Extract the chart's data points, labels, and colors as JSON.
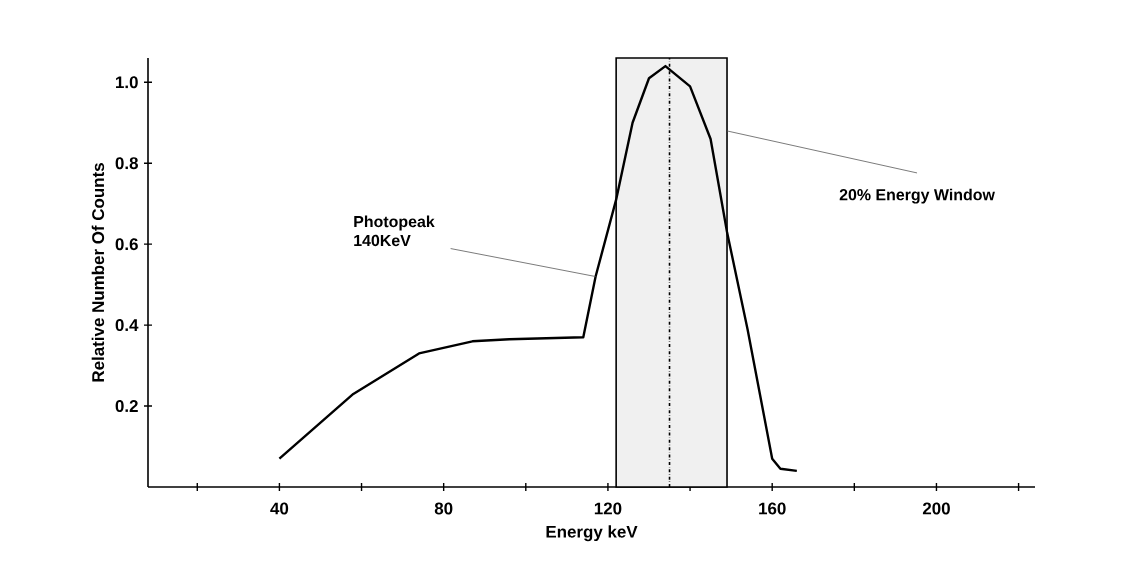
{
  "chart_data": {
    "type": "line",
    "xlabel": "Energy keV",
    "ylabel": "Relative Number Of Counts",
    "x": [
      40,
      58,
      74,
      87,
      96,
      114,
      117,
      122,
      126,
      130,
      134,
      140,
      145,
      149,
      154,
      160,
      162,
      166
    ],
    "series": [
      {
        "color": "#000000",
        "values": [
          0.07,
          0.23,
          0.33,
          0.36,
          0.365,
          0.37,
          0.52,
          0.71,
          0.9,
          1.01,
          1.04,
          0.99,
          0.86,
          0.63,
          0.39,
          0.07,
          0.045,
          0.04
        ]
      }
    ],
    "xlim": [
      8,
      224
    ],
    "ylim": [
      0,
      1.06
    ],
    "xticks": [
      {
        "value": 20,
        "label": null
      },
      40,
      {
        "value": 60,
        "label": null
      },
      80,
      {
        "value": 100,
        "label": null
      },
      120,
      {
        "value": 140,
        "label": null
      },
      160,
      {
        "value": 180,
        "label": null
      },
      200,
      {
        "value": 220,
        "label": null
      }
    ],
    "yticks": [
      0.2,
      0.4,
      0.6,
      0.8,
      {
        "value": 1.0,
        "label": "1.0"
      }
    ],
    "ref_lines": [
      {
        "axis": "x",
        "value": 135,
        "line_style": "dashdot"
      }
    ],
    "bands": [
      {
        "axis": "x",
        "from": 122,
        "to": 149,
        "label": "20% Energy Window",
        "color": "#f0f0f0"
      }
    ],
    "annotations": [
      {
        "text": "Photopeak 140KeV",
        "x": 117,
        "y": 0.52
      }
    ]
  }
}
